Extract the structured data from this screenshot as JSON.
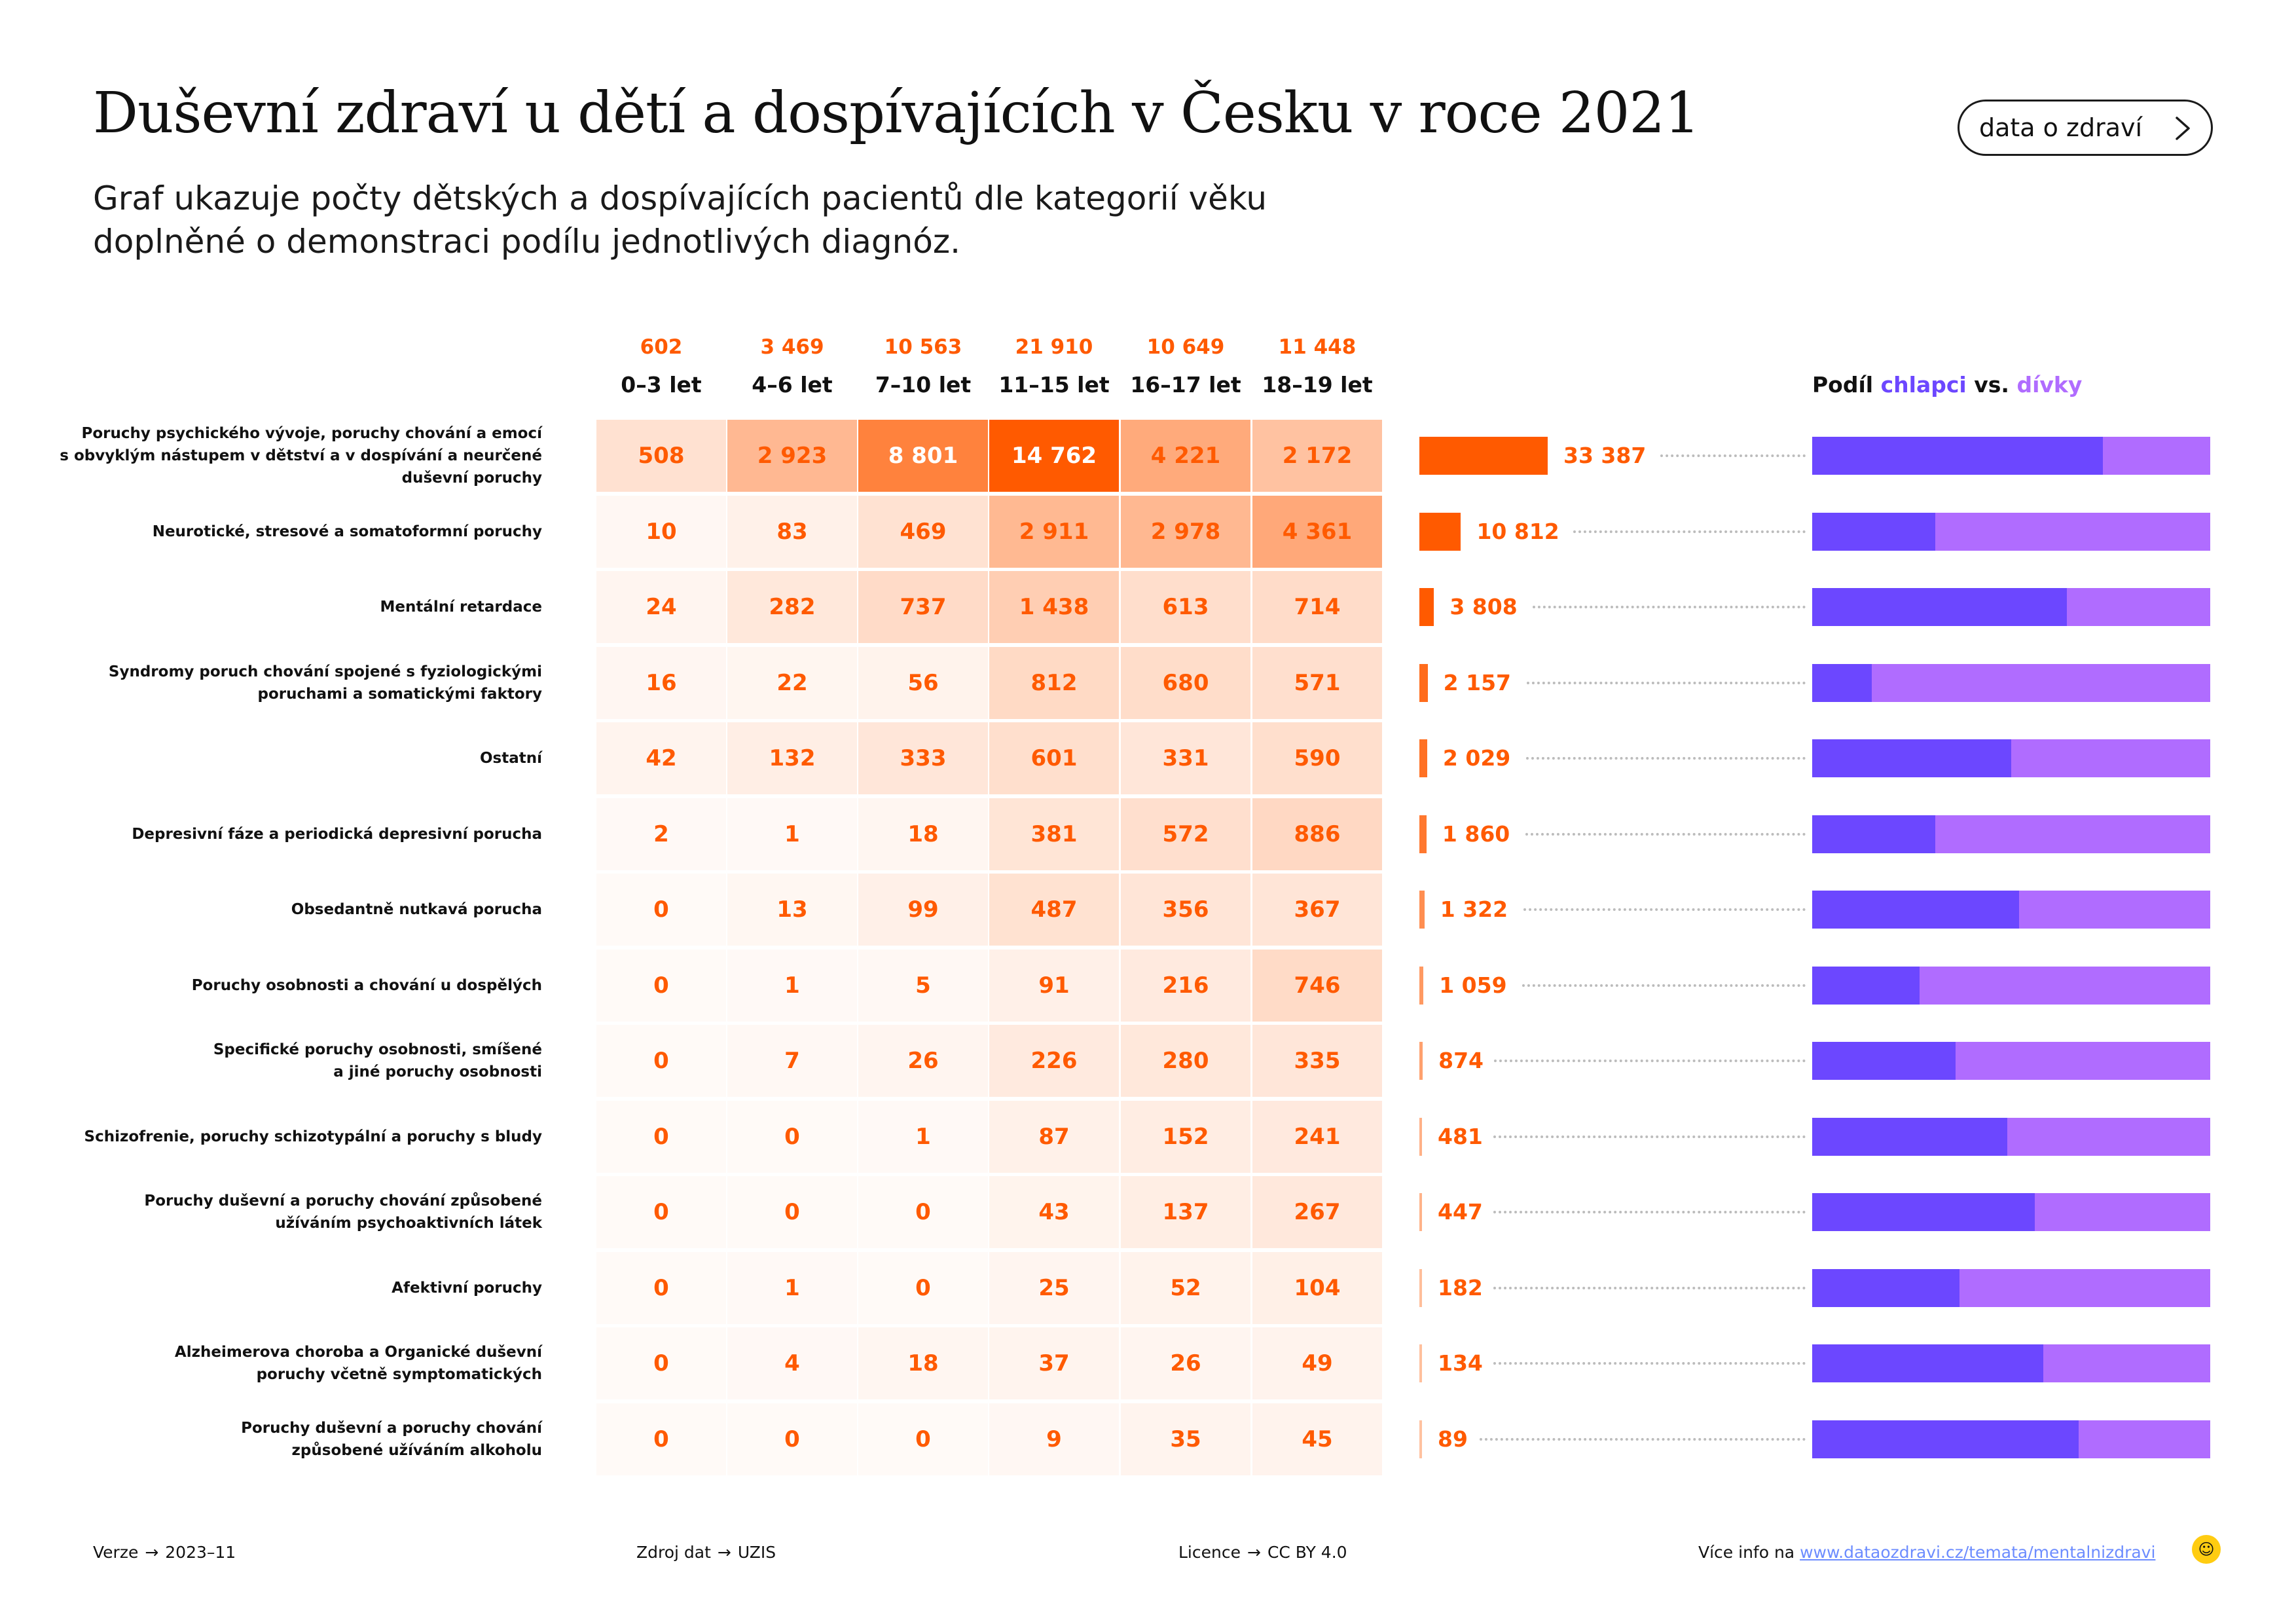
{
  "header": {
    "title": "Duševní zdraví u dětí a dospívajících v Česku v roce 2021",
    "subtitle_line1": "Graf ukazuje počty dětských a dospívajících pacientů dle kategorií věku",
    "subtitle_line2": "doplněné o demonstraci podílu jednotlivých diagnóz.",
    "button_label": "data o zdraví"
  },
  "share_header": {
    "prefix": "Podíl",
    "boys": "chlapci",
    "vs": "vs.",
    "girls": "dívky"
  },
  "colors": {
    "accent": "#ff5a00",
    "boys": "#6c47ff",
    "girls": "#b06cff",
    "link": "#6c8cff"
  },
  "chart_data": {
    "type": "heatmap",
    "columns": [
      {
        "label": "0–3 let",
        "total": "602"
      },
      {
        "label": "4–6 let",
        "total": "3 469"
      },
      {
        "label": "7–10 let",
        "total": "10 563"
      },
      {
        "label": "11–15 let",
        "total": "21 910"
      },
      {
        "label": "16–17 let",
        "total": "10 649"
      },
      {
        "label": "18–19 let",
        "total": "11 448"
      }
    ],
    "rows": [
      {
        "label_lines": [
          "Poruchy psychického vývoje, poruchy chování a emocí",
          "s obvyklým nástupem v dětství a v dospívání a neurčené",
          "duševní poruchy"
        ],
        "values": [
          508,
          2923,
          8801,
          14762,
          4221,
          2172
        ],
        "total": 33387,
        "total_label": "33 387",
        "boys_share": 0.73
      },
      {
        "label_lines": [
          "Neurotické, stresové a somatoformní poruchy"
        ],
        "values": [
          10,
          83,
          469,
          2911,
          2978,
          4361
        ],
        "total": 10812,
        "total_label": "10 812",
        "boys_share": 0.31
      },
      {
        "label_lines": [
          "Mentální retardace"
        ],
        "values": [
          24,
          282,
          737,
          1438,
          613,
          714
        ],
        "total": 3808,
        "total_label": "3 808",
        "boys_share": 0.64
      },
      {
        "label_lines": [
          "Syndromy poruch chování spojené s fyziologickými",
          "poruchami a somatickými faktory"
        ],
        "values": [
          16,
          22,
          56,
          812,
          680,
          571
        ],
        "total": 2157,
        "total_label": "2 157",
        "boys_share": 0.15
      },
      {
        "label_lines": [
          "Ostatní"
        ],
        "values": [
          42,
          132,
          333,
          601,
          331,
          590
        ],
        "total": 2029,
        "total_label": "2 029",
        "boys_share": 0.5
      },
      {
        "label_lines": [
          "Depresivní fáze a periodická depresivní porucha"
        ],
        "values": [
          2,
          1,
          18,
          381,
          572,
          886
        ],
        "total": 1860,
        "total_label": "1 860",
        "boys_share": 0.31
      },
      {
        "label_lines": [
          "Obsedantně nutkavá porucha"
        ],
        "values": [
          0,
          13,
          99,
          487,
          356,
          367
        ],
        "total": 1322,
        "total_label": "1 322",
        "boys_share": 0.52
      },
      {
        "label_lines": [
          "Poruchy osobnosti a chování u dospělých"
        ],
        "values": [
          0,
          1,
          5,
          91,
          216,
          746
        ],
        "total": 1059,
        "total_label": "1 059",
        "boys_share": 0.27
      },
      {
        "label_lines": [
          "Specifické poruchy osobnosti, smíšené",
          "a jiné poruchy osobnosti"
        ],
        "values": [
          0,
          7,
          26,
          226,
          280,
          335
        ],
        "total": 874,
        "total_label": "874",
        "boys_share": 0.36
      },
      {
        "label_lines": [
          "Schizofrenie, poruchy schizotypální a poruchy s bludy"
        ],
        "values": [
          0,
          0,
          1,
          87,
          152,
          241
        ],
        "total": 481,
        "total_label": "481",
        "boys_share": 0.49
      },
      {
        "label_lines": [
          "Poruchy duševní a poruchy chování způsobené",
          "užíváním psychoaktivních látek"
        ],
        "values": [
          0,
          0,
          0,
          43,
          137,
          267
        ],
        "total": 447,
        "total_label": "447",
        "boys_share": 0.56
      },
      {
        "label_lines": [
          "Afektivní poruchy"
        ],
        "values": [
          0,
          1,
          0,
          25,
          52,
          104
        ],
        "total": 182,
        "total_label": "182",
        "boys_share": 0.37
      },
      {
        "label_lines": [
          "Alzheimerova choroba a Organické duševní",
          "poruchy včetně symptomatických"
        ],
        "values": [
          0,
          4,
          18,
          37,
          26,
          49
        ],
        "total": 134,
        "total_label": "134",
        "boys_share": 0.58
      },
      {
        "label_lines": [
          "Poruchy duševní a poruchy chování",
          "způsobené užíváním alkoholu"
        ],
        "values": [
          0,
          0,
          0,
          9,
          35,
          45
        ],
        "total": 89,
        "total_label": "89",
        "boys_share": 0.67
      }
    ]
  },
  "footer": {
    "version_label": "Verze",
    "version_value": "2023–11",
    "source_label": "Zdroj dat",
    "source_value": "UZIS",
    "license_label": "Licence",
    "license_value": "CC BY 4.0",
    "info_label": "Více info na",
    "info_link": "www.dataozdravi.cz/temata/mentalnizdravi"
  }
}
